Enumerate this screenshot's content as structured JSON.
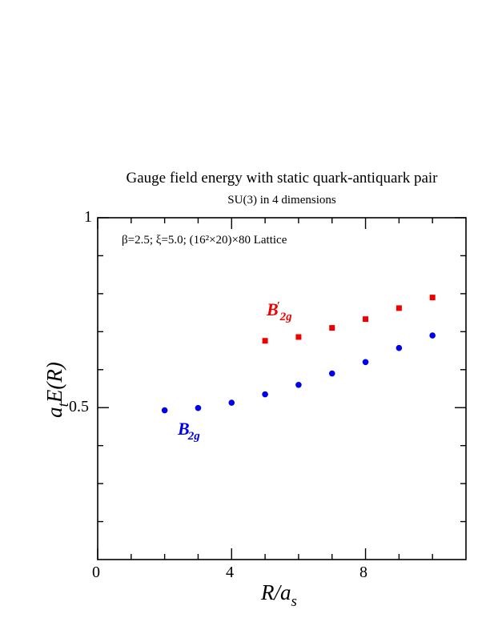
{
  "chart_data": {
    "type": "scatter",
    "title": "Gauge field energy with static quark-antiquark pair",
    "subtitle": "SU(3) in 4 dimensions",
    "annotation": "β=2.5; ξ=5.0; (16²×20)×80 Lattice",
    "xlabel": {
      "main": "R/a",
      "sub": "s"
    },
    "ylabel": {
      "pre": "a",
      "sub": "t",
      "main": "E(R)"
    },
    "xlim": [
      0,
      11
    ],
    "ylim": [
      0.1,
      1.0
    ],
    "x_ticks": [
      0,
      4,
      8
    ],
    "x_tick_labels": [
      "0",
      "4",
      "8"
    ],
    "y_ticks": [
      0.5,
      1.0
    ],
    "y_tick_labels": [
      "0.5",
      "1"
    ],
    "x_minor_ticks": [
      1,
      2,
      3,
      5,
      6,
      7,
      9,
      10
    ],
    "y_minor_ticks": [
      0.2,
      0.3,
      0.4,
      0.6,
      0.7,
      0.8,
      0.9
    ],
    "grid": false,
    "series": [
      {
        "name": "B2g",
        "label": {
          "main": "B",
          "sub": "2g",
          "prime": ""
        },
        "color": "#0000ee",
        "marker": "circle",
        "x": [
          2,
          3,
          4,
          5,
          6,
          7,
          8,
          9,
          10
        ],
        "y": [
          0.493,
          0.499,
          0.513,
          0.535,
          0.56,
          0.59,
          0.62,
          0.657,
          0.69
        ]
      },
      {
        "name": "B'2g",
        "label": {
          "main": "B",
          "sub": "2g",
          "prime": "′"
        },
        "color": "#ee0000",
        "marker": "square",
        "x": [
          5,
          6,
          7,
          8,
          9,
          10
        ],
        "y": [
          0.676,
          0.686,
          0.71,
          0.733,
          0.762,
          0.79
        ]
      }
    ]
  }
}
